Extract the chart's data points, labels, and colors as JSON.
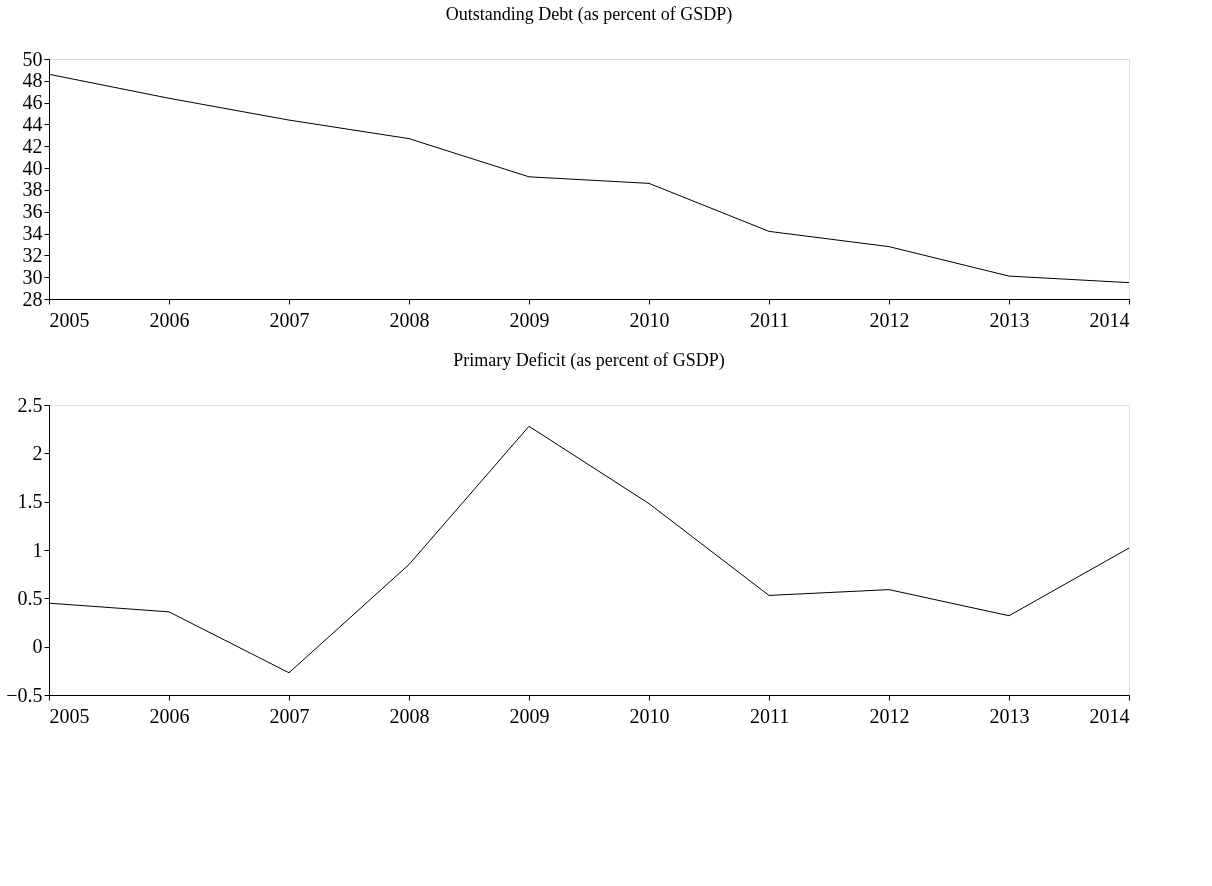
{
  "chart_data": [
    {
      "type": "line",
      "title": "Outstanding Debt (as percent of GSDP)",
      "x": [
        2005,
        2006,
        2007,
        2008,
        2009,
        2010,
        2011,
        2012,
        2013,
        2014
      ],
      "series": [
        {
          "color": "#000000",
          "values": [
            48.6,
            46.4,
            44.4,
            42.7,
            39.2,
            38.6,
            34.2,
            32.8,
            30.1,
            29.5
          ]
        }
      ],
      "xlim": [
        2005,
        2014
      ],
      "xticks": [
        2005,
        2006,
        2007,
        2008,
        2009,
        2010,
        2011,
        2012,
        2013,
        2014
      ],
      "ylim": [
        28,
        50
      ],
      "yticks": [
        28,
        30,
        32,
        34,
        36,
        38,
        40,
        42,
        44,
        46,
        48,
        50
      ]
    },
    {
      "type": "line",
      "title": "Primary Deficit (as percent of GSDP)",
      "x": [
        2005,
        2006,
        2007,
        2008,
        2009,
        2010,
        2011,
        2012,
        2013,
        2014
      ],
      "series": [
        {
          "color": "#000000",
          "values": [
            0.45,
            0.36,
            -0.27,
            0.85,
            2.28,
            1.48,
            0.53,
            0.59,
            0.32,
            1.02
          ]
        }
      ],
      "xlim": [
        2005,
        2014
      ],
      "xticks": [
        2005,
        2006,
        2007,
        2008,
        2009,
        2010,
        2011,
        2012,
        2013,
        2014
      ],
      "ylim": [
        -0.5,
        2.5
      ],
      "yticks": [
        -0.5,
        0,
        0.5,
        1,
        1.5,
        2,
        2.5
      ]
    }
  ]
}
